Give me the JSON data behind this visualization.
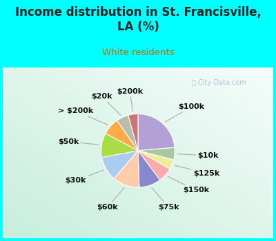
{
  "title": "Income distribution in St. Francisville,\nLA (%)",
  "subtitle": "White residents",
  "title_color": "#222222",
  "subtitle_color": "#cc6600",
  "page_bg": "#00ffff",
  "chart_bg_top_right": "#f0faf8",
  "chart_bg_bottom_left": "#c8eedc",
  "labels": [
    "$100k",
    "$10k",
    "$125k",
    "$150k",
    "$75k",
    "$60k",
    "$30k",
    "$50k",
    "> $200k",
    "$20k",
    "$200k"
  ],
  "values": [
    22,
    5,
    4,
    6,
    9,
    11,
    10,
    10,
    7,
    5,
    4
  ],
  "colors": [
    "#b3a0d4",
    "#a8c8a0",
    "#eeee99",
    "#ffaaaa",
    "#8888cc",
    "#ffccaa",
    "#aaccee",
    "#aadd44",
    "#ffaa44",
    "#bbbbaa",
    "#cc7777"
  ],
  "label_fontsize": 8,
  "title_fontsize": 12,
  "subtitle_fontsize": 9.5,
  "watermark_text": "  City-Data.com"
}
